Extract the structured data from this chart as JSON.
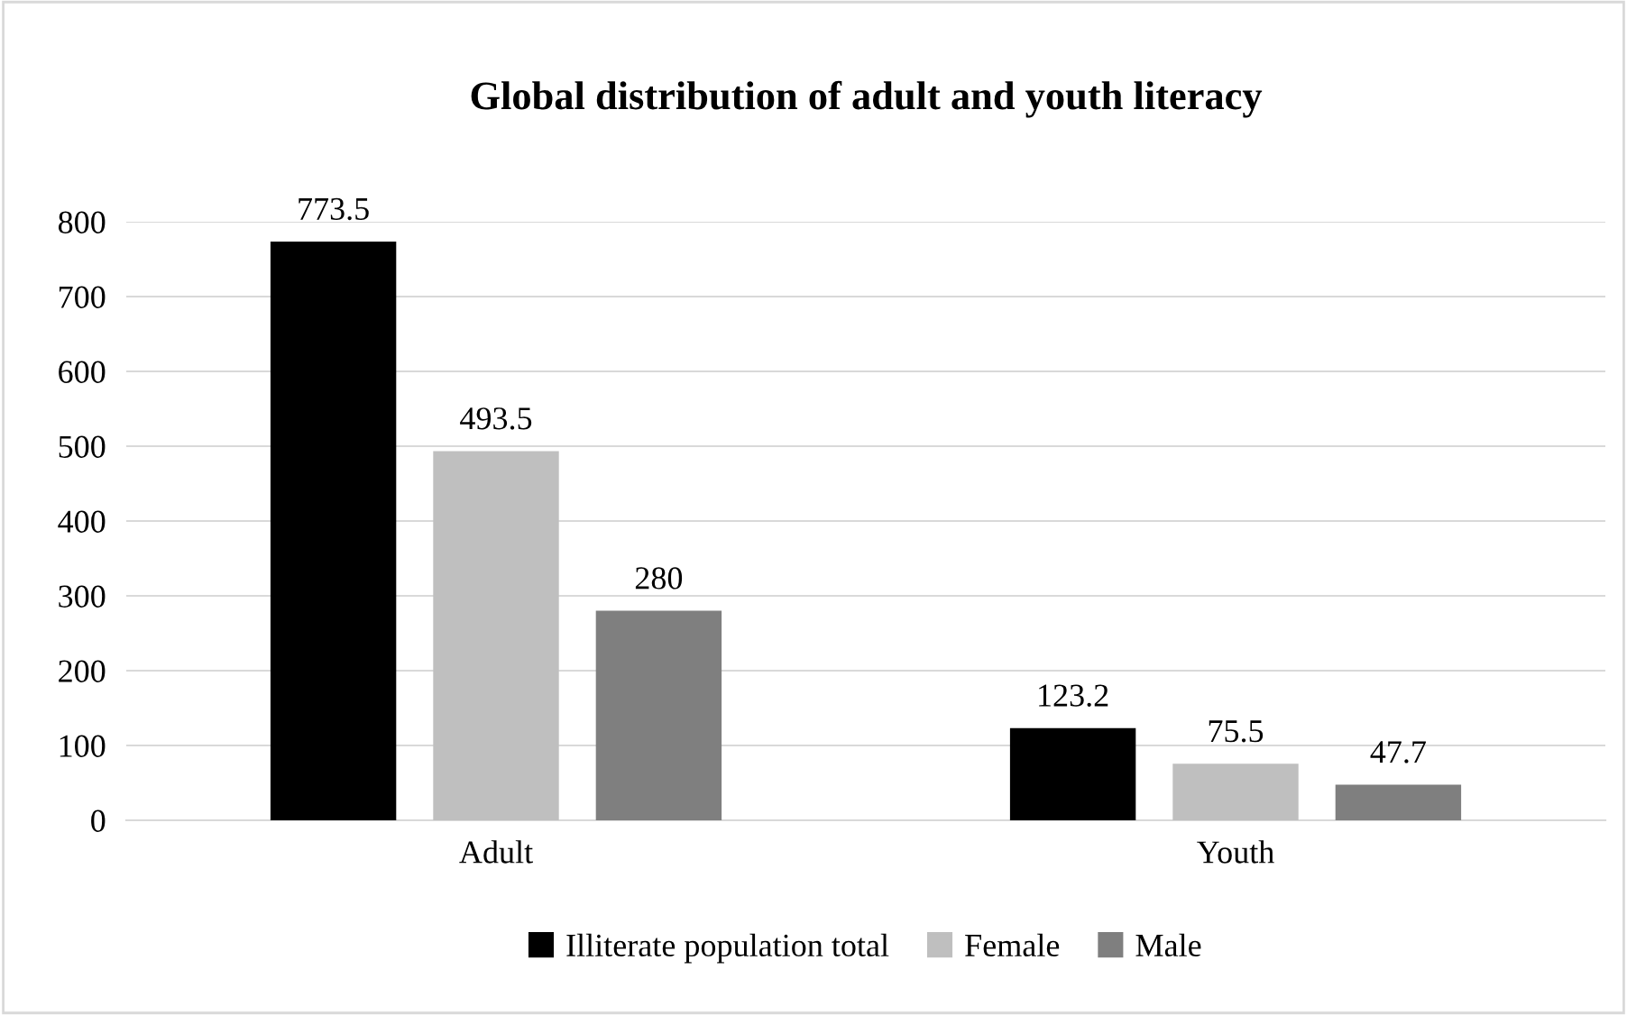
{
  "chart_data": {
    "type": "bar",
    "title": "Global distribution of adult and youth literacy",
    "categories": [
      "Adult",
      "Youth"
    ],
    "series": [
      {
        "name": "Illiterate population total",
        "color": "#000000",
        "values": [
          773.5,
          123.2
        ]
      },
      {
        "name": "Female",
        "color": "#bfbfbf",
        "values": [
          493.5,
          75.5
        ]
      },
      {
        "name": "Male",
        "color": "#7f7f7f",
        "values": [
          280,
          47.7
        ]
      }
    ],
    "ylim": [
      0,
      800
    ],
    "yticks": [
      0,
      100,
      200,
      300,
      400,
      500,
      600,
      700,
      800
    ],
    "grid": "y",
    "legend": "bottom",
    "data_labels": true
  }
}
